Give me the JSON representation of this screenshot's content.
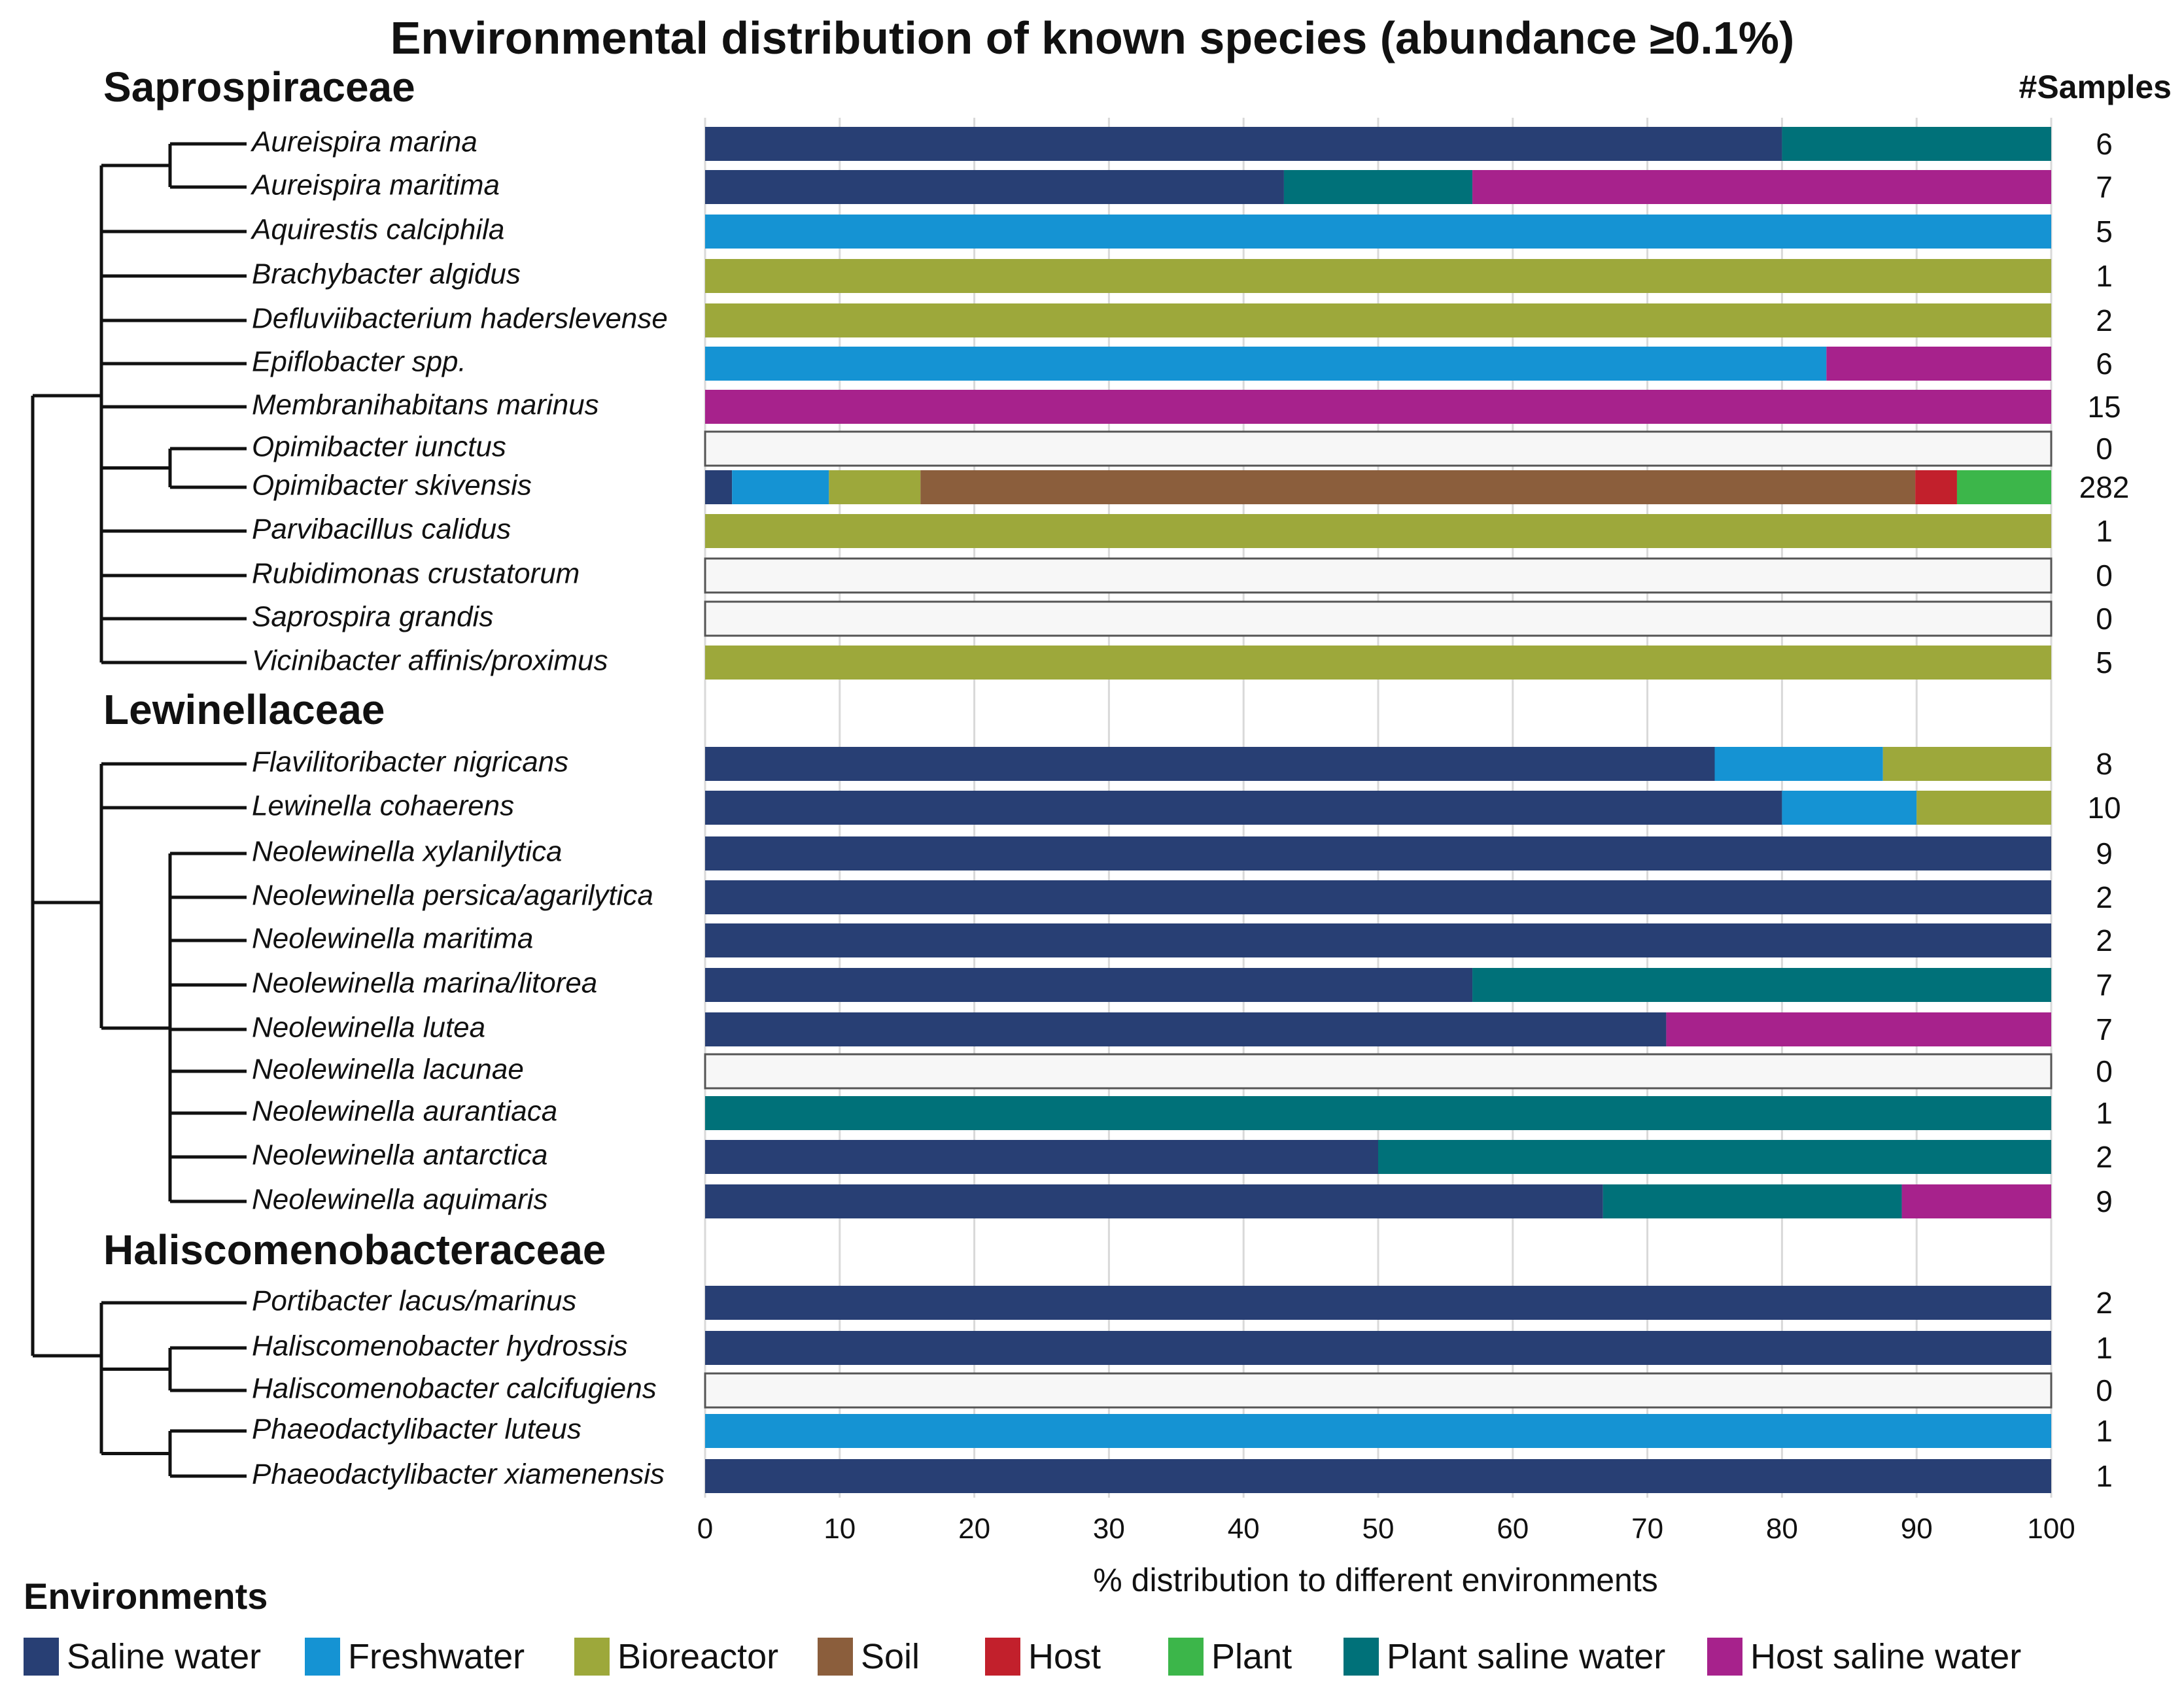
{
  "chart_data": {
    "type": "bar",
    "orientation": "horizontal",
    "stacked": true,
    "title": "Environmental distribution of known species (abundance ≥0.1%)",
    "xlabel": "% distribution to different environments",
    "samples_header": "#Samples",
    "xlim": [
      0,
      100
    ],
    "xticks": [
      0,
      10,
      20,
      30,
      40,
      50,
      60,
      70,
      80,
      90,
      100
    ],
    "grid": true,
    "legend_title": "Environments",
    "legend_position": "bottom",
    "environments": [
      {
        "key": "saline",
        "name": "Saline water",
        "color": "#283f74"
      },
      {
        "key": "fresh",
        "name": "Freshwater",
        "color": "#1593d3"
      },
      {
        "key": "bio",
        "name": "Bioreactor",
        "color": "#9da83b"
      },
      {
        "key": "soil",
        "name": "Soil",
        "color": "#8b5e3c"
      },
      {
        "key": "host",
        "name": "Host",
        "color": "#c2202c"
      },
      {
        "key": "plant",
        "name": "Plant",
        "color": "#3cb64a"
      },
      {
        "key": "psw",
        "name": "Plant saline water",
        "color": "#007179"
      },
      {
        "key": "hsw",
        "name": "Host saline water",
        "color": "#a7228c"
      }
    ],
    "empty_color": "#f7f7f7",
    "families": [
      {
        "name": "Saprospiraceae",
        "species": [
          {
            "name": "Aureispira marina",
            "samples": "6",
            "segments": [
              {
                "env": "saline",
                "value": 80
              },
              {
                "env": "psw",
                "value": 20
              }
            ]
          },
          {
            "name": "Aureispira maritima",
            "samples": "7",
            "segments": [
              {
                "env": "saline",
                "value": 43
              },
              {
                "env": "psw",
                "value": 14
              },
              {
                "env": "hsw",
                "value": 43
              }
            ]
          },
          {
            "name": "Aquirestis calciphila",
            "samples": "5",
            "segments": [
              {
                "env": "fresh",
                "value": 100
              }
            ]
          },
          {
            "name": "Brachybacter algidus",
            "samples": "1",
            "segments": [
              {
                "env": "bio",
                "value": 100
              }
            ]
          },
          {
            "name": "Defluviibacterium haderslevense",
            "samples": "2",
            "segments": [
              {
                "env": "bio",
                "value": 100
              }
            ]
          },
          {
            "name": "Epiflobacter spp.",
            "samples": "6",
            "segments": [
              {
                "env": "fresh",
                "value": 83.3
              },
              {
                "env": "hsw",
                "value": 16.7
              }
            ]
          },
          {
            "name": "Membranihabitans marinus",
            "samples": "15",
            "segments": [
              {
                "env": "hsw",
                "value": 100
              }
            ]
          },
          {
            "name": "Opimibacter iunctus",
            "samples": "0",
            "segments": []
          },
          {
            "name": "Opimibacter skivensis",
            "samples": "282",
            "segments": [
              {
                "env": "saline",
                "value": 2
              },
              {
                "env": "fresh",
                "value": 7.2
              },
              {
                "env": "bio",
                "value": 6.8
              },
              {
                "env": "soil",
                "value": 73.9
              },
              {
                "env": "host",
                "value": 3.1
              },
              {
                "env": "plant",
                "value": 7
              }
            ]
          },
          {
            "name": "Parvibacillus calidus",
            "samples": "1",
            "segments": [
              {
                "env": "bio",
                "value": 100
              }
            ]
          },
          {
            "name": "Rubidimonas crustatorum",
            "samples": "0",
            "segments": []
          },
          {
            "name": "Saprospira grandis",
            "samples": "0",
            "segments": []
          },
          {
            "name": "Vicinibacter affinis/proximus",
            "samples": "5",
            "segments": [
              {
                "env": "bio",
                "value": 100
              }
            ]
          }
        ]
      },
      {
        "name": "Lewinellaceae",
        "species": [
          {
            "name": "Flavilitoribacter nigricans",
            "samples": "8",
            "segments": [
              {
                "env": "saline",
                "value": 75
              },
              {
                "env": "fresh",
                "value": 12.5
              },
              {
                "env": "bio",
                "value": 12.5
              }
            ]
          },
          {
            "name": "Lewinella cohaerens",
            "samples": "10",
            "segments": [
              {
                "env": "saline",
                "value": 80
              },
              {
                "env": "fresh",
                "value": 10
              },
              {
                "env": "bio",
                "value": 10
              }
            ]
          },
          {
            "name": "Neolewinella xylanilytica",
            "samples": "9",
            "segments": [
              {
                "env": "saline",
                "value": 100
              }
            ]
          },
          {
            "name": "Neolewinella persica/agarilytica",
            "samples": "2",
            "segments": [
              {
                "env": "saline",
                "value": 100
              }
            ]
          },
          {
            "name": "Neolewinella maritima",
            "samples": "2",
            "segments": [
              {
                "env": "saline",
                "value": 100
              }
            ]
          },
          {
            "name": "Neolewinella marina/litorea",
            "samples": "7",
            "segments": [
              {
                "env": "saline",
                "value": 57
              },
              {
                "env": "psw",
                "value": 43
              }
            ]
          },
          {
            "name": "Neolewinella lutea",
            "samples": "7",
            "segments": [
              {
                "env": "saline",
                "value": 71.4
              },
              {
                "env": "hsw",
                "value": 28.6
              }
            ]
          },
          {
            "name": "Neolewinella lacunae",
            "samples": "0",
            "segments": []
          },
          {
            "name": "Neolewinella aurantiaca",
            "samples": "1",
            "segments": [
              {
                "env": "psw",
                "value": 100
              }
            ]
          },
          {
            "name": "Neolewinella antarctica",
            "samples": "2",
            "segments": [
              {
                "env": "saline",
                "value": 50
              },
              {
                "env": "psw",
                "value": 50
              }
            ]
          },
          {
            "name": "Neolewinella aquimaris",
            "samples": "9",
            "segments": [
              {
                "env": "saline",
                "value": 66.7
              },
              {
                "env": "psw",
                "value": 22.2
              },
              {
                "env": "hsw",
                "value": 11.1
              }
            ]
          }
        ]
      },
      {
        "name": "Haliscomenobacteraceae",
        "species": [
          {
            "name": "Portibacter lacus/marinus",
            "samples": "2",
            "segments": [
              {
                "env": "saline",
                "value": 100
              }
            ]
          },
          {
            "name": "Haliscomenobacter hydrossis",
            "samples": "1",
            "segments": [
              {
                "env": "saline",
                "value": 100
              }
            ]
          },
          {
            "name": "Haliscomenobacter calcifugiens",
            "samples": "0",
            "segments": []
          },
          {
            "name": "Phaeodactylibacter luteus",
            "samples": "1",
            "segments": [
              {
                "env": "fresh",
                "value": 100
              }
            ]
          },
          {
            "name": "Phaeodactylibacter xiamenensis",
            "samples": "1",
            "segments": [
              {
                "env": "saline",
                "value": 100
              }
            ]
          }
        ]
      }
    ]
  }
}
